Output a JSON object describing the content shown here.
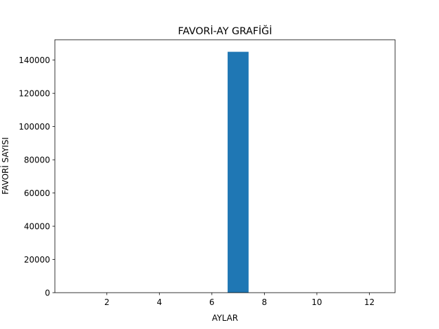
{
  "chart_data": {
    "type": "bar",
    "title": "FAVORİ-AY GRAFİĞİ",
    "xlabel": "AYLAR",
    "ylabel": "FAVORİ SAYISI",
    "x": [
      7
    ],
    "values": [
      145000
    ],
    "bar_width": 0.8,
    "xlim": [
      0.02,
      12.98
    ],
    "ylim": [
      0,
      152250
    ],
    "xticks": [
      2,
      4,
      6,
      8,
      10,
      12
    ],
    "yticks": [
      0,
      20000,
      40000,
      60000,
      80000,
      100000,
      120000,
      140000
    ],
    "bar_color": "#1f77b4",
    "grid": false,
    "legend": "none"
  }
}
